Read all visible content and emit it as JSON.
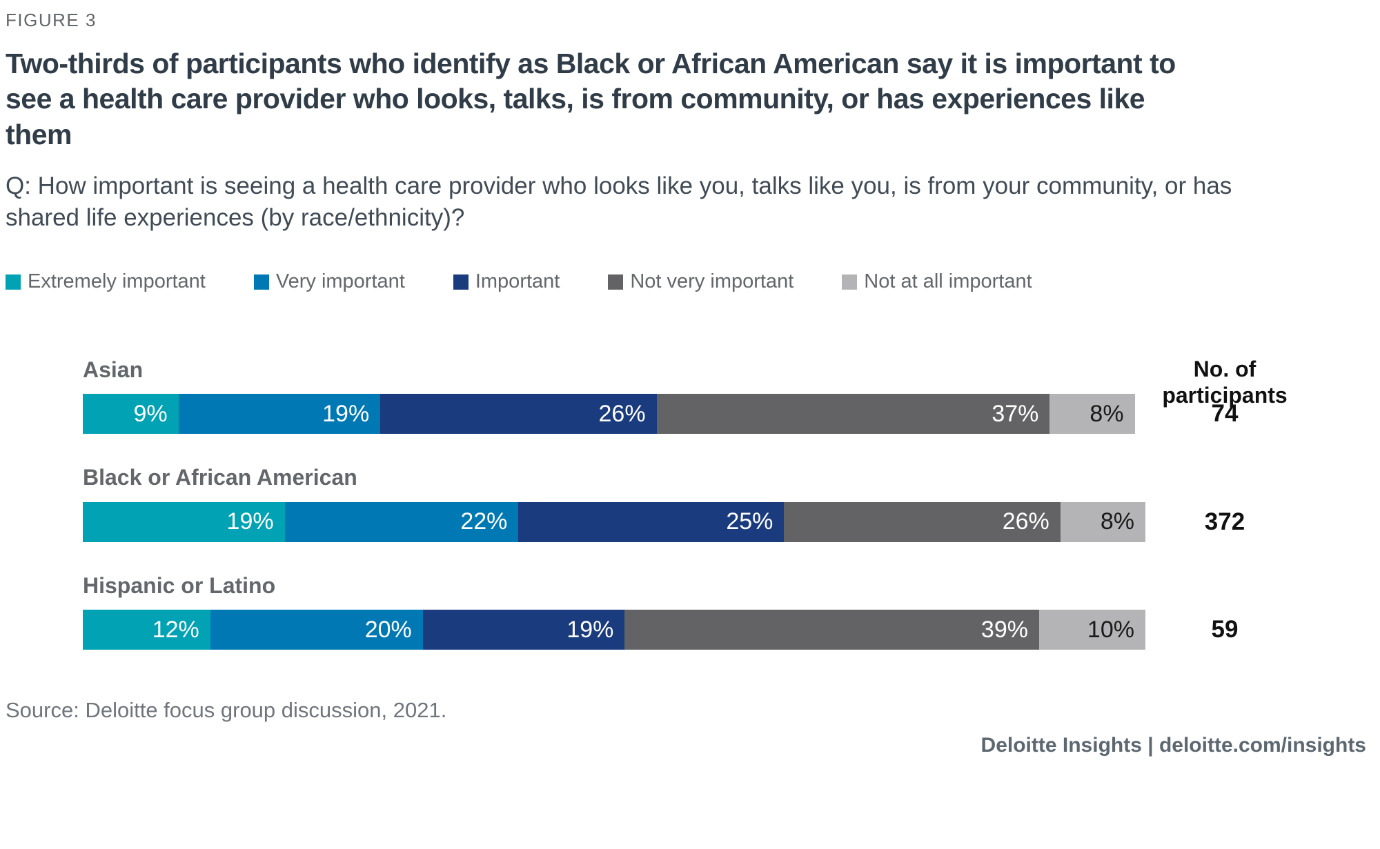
{
  "figure_label": "FIGURE 3",
  "title": "Two-thirds of participants who identify as Black or African American say it is important to see a health care provider who looks, talks, is from community, or has experiences like them",
  "question": "Q: How important is seeing a health care provider who looks like you, talks like you, is from your community, or has shared life experiences (by race/ethnicity)?",
  "participants_header": "No. of participants",
  "source": "Source: Deloitte focus group discussion, 2021.",
  "footer": "Deloitte Insights | deloitte.com/insights",
  "colors": {
    "extremely_important": "#00A2B3",
    "very_important": "#0078B4",
    "important": "#1A3C7E",
    "not_very_important": "#636366",
    "not_at_all_important": "#B4B4B6",
    "title_text": "#303C47",
    "label_gray": "#63666A"
  },
  "chart_data": {
    "type": "bar",
    "stacked": true,
    "orientation": "horizontal",
    "title": "Two-thirds of participants who identify as Black or African American say it is important to see a health care provider who looks, talks, is from community, or has experiences like them",
    "categories": [
      "Asian",
      "Black or African American",
      "Hispanic or Latino"
    ],
    "participants": [
      74,
      372,
      59
    ],
    "series": [
      {
        "name": "Extremely important",
        "color": "#00A2B3",
        "text_color": "#FFFFFF",
        "values": [
          9,
          19,
          12
        ]
      },
      {
        "name": "Very important",
        "color": "#0078B4",
        "text_color": "#FFFFFF",
        "values": [
          19,
          22,
          20
        ]
      },
      {
        "name": "Important",
        "color": "#1A3C7E",
        "text_color": "#FFFFFF",
        "values": [
          26,
          25,
          19
        ]
      },
      {
        "name": "Not very important",
        "color": "#636366",
        "text_color": "#FFFFFF",
        "values": [
          37,
          26,
          39
        ]
      },
      {
        "name": "Not at all important",
        "color": "#B4B4B6",
        "text_color": "#1A1A1A",
        "values": [
          8,
          8,
          10
        ]
      }
    ],
    "value_suffix": "%",
    "xlim": [
      0,
      100
    ],
    "grid": false,
    "legend_position": "top"
  }
}
